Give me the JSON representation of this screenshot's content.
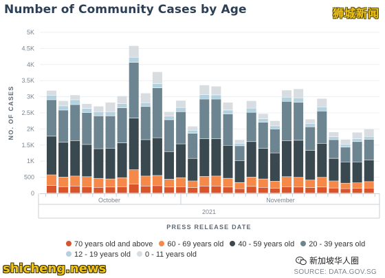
{
  "title": "Number of Community Cases by Age",
  "brand_top": "狮城新闻",
  "brand_bottom": "shicheng.news",
  "wechat_label": "新加坡华人圈",
  "source": "SOURCE: DATA.GOV.SG",
  "chart_data": {
    "type": "bar",
    "stacked": true,
    "ylabel": "NO. OF CASES",
    "xlabel": "PRESS RELEASE DATE",
    "ylim": [
      0,
      5000
    ],
    "yticks": [
      "0",
      "500",
      "1K",
      "1.5K",
      "2K",
      "2.5K",
      "3K",
      "3.5K",
      "4K",
      "4.5K",
      "5K"
    ],
    "month_labels": [
      "October",
      "November"
    ],
    "year_label": "2021",
    "grid": true,
    "legend_position": "bottom",
    "series": [
      {
        "name": "70 years old and above",
        "color": "#d9532b",
        "values": [
          240,
          200,
          220,
          200,
          180,
          190,
          200,
          280,
          220,
          230,
          190,
          200,
          170,
          220,
          220,
          190,
          140,
          210,
          180,
          150,
          200,
          190,
          170,
          190,
          160,
          140,
          150,
          160
        ]
      },
      {
        "name": "60 - 69 years old",
        "color": "#f5894a",
        "values": [
          330,
          300,
          310,
          310,
          280,
          250,
          280,
          450,
          310,
          320,
          240,
          280,
          210,
          300,
          310,
          270,
          190,
          290,
          260,
          220,
          310,
          300,
          240,
          300,
          220,
          170,
          170,
          200
        ]
      },
      {
        "name": "40 - 59 years old",
        "color": "#39494f",
        "values": [
          1200,
          1080,
          1100,
          1000,
          920,
          950,
          1080,
          1600,
          1130,
          1170,
          860,
          1050,
          700,
          1170,
          1160,
          1020,
          680,
          1100,
          950,
          880,
          1120,
          1150,
          920,
          1050,
          700,
          660,
          650,
          670
        ]
      },
      {
        "name": "20 - 39 years old",
        "color": "#6c8590",
        "values": [
          1130,
          1000,
          1120,
          990,
          1020,
          1010,
          1090,
          1730,
          1030,
          1550,
          990,
          1000,
          780,
          1230,
          1230,
          980,
          460,
          910,
          810,
          740,
          1220,
          1180,
          730,
          1010,
          580,
          460,
          630,
          640
        ]
      },
      {
        "name": "12 - 19 years old",
        "color": "#b3d1df",
        "values": [
          140,
          130,
          150,
          130,
          130,
          130,
          130,
          160,
          120,
          130,
          110,
          130,
          90,
          140,
          130,
          120,
          80,
          130,
          110,
          100,
          130,
          140,
          100,
          130,
          90,
          80,
          90,
          90
        ]
      },
      {
        "name": "0 - 11 years old",
        "color": "#d8dde1",
        "values": [
          150,
          160,
          150,
          150,
          170,
          290,
          240,
          360,
          300,
          370,
          140,
          220,
          130,
          300,
          270,
          240,
          110,
          230,
          160,
          160,
          220,
          280,
          140,
          260,
          150,
          160,
          200,
          230
        ]
      }
    ]
  }
}
